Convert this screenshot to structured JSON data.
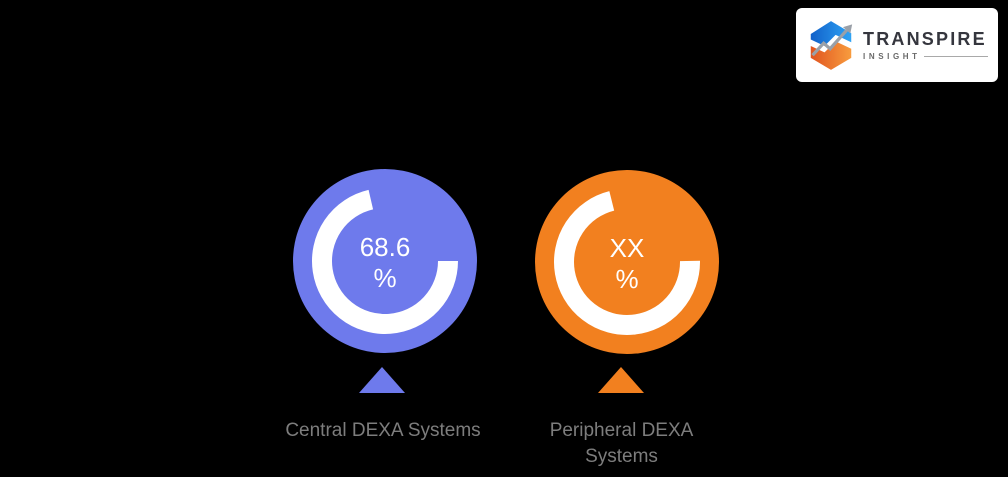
{
  "page": {
    "background_color": "#000000"
  },
  "logo": {
    "brand": "TRANSPIRE",
    "tagline": "INSIGHT",
    "colors": {
      "box": "#ffffff",
      "brand_text": "#35363e",
      "tagline_text": "#6a6a6a",
      "rule": "#a9a9a9",
      "icon_blue_dark": "#1161c9",
      "icon_blue_light": "#2fa3f5",
      "icon_orange_dark": "#e0541f",
      "icon_orange_light": "#f89c3e",
      "icon_arrow": "#9aa0a8"
    }
  },
  "chart_data": {
    "type": "pie",
    "subtype": "donut-gauge-pair",
    "title": "",
    "legend_position": "below-gauges",
    "label_color": "#7d7d7d",
    "value_text_color": "#ffffff",
    "gauges": [
      {
        "label": "Central DEXA Systems",
        "value": "68.6",
        "unit": "%",
        "percent": 68.6,
        "fill_color": "#6e7aec",
        "ring_color": "#ffffff",
        "arc_start_deg": 90,
        "arc_end_deg": 347
      },
      {
        "label": "Peripheral DEXA Systems",
        "value": "XX",
        "unit": "%",
        "percent": "XX (placeholder)",
        "fill_color": "#f2801f",
        "ring_color": "#ffffff",
        "arc_start_deg": 89,
        "arc_end_deg": 346
      }
    ]
  }
}
